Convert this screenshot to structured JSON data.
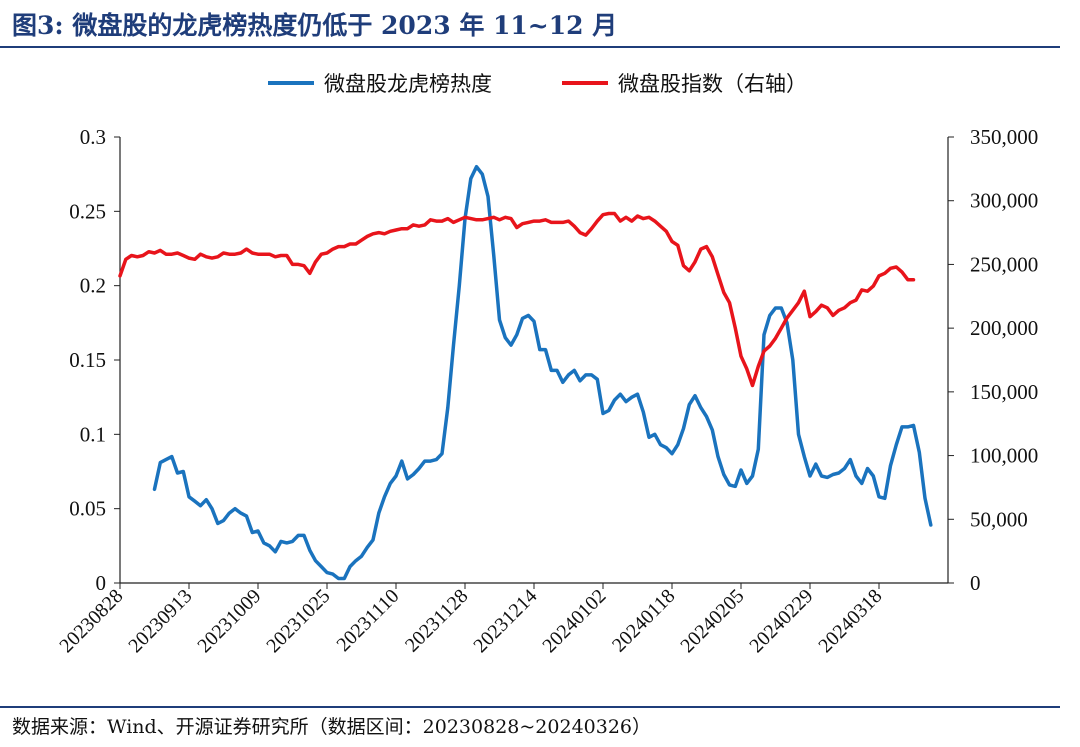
{
  "title": "图3:  微盘股的龙虎榜热度仍低于 2023 年 11~12 月",
  "source": "数据来源：Wind、开源证券研究所（数据区间：20230828~20240326）",
  "chart_data": {
    "type": "line",
    "legend_position": "top",
    "grid": false,
    "x_tick_labels": [
      "20230828",
      "20230913",
      "20231009",
      "20231025",
      "20231110",
      "20231128",
      "20231214",
      "20240102",
      "20240118",
      "20240205",
      "20240229",
      "20240318"
    ],
    "left_axis": {
      "ylim": [
        0,
        0.3
      ],
      "ticks": [
        "0",
        "0.05",
        "0.1",
        "0.15",
        "0.2",
        "0.25",
        "0.3"
      ]
    },
    "right_axis": {
      "ylim": [
        0,
        350000
      ],
      "ticks": [
        "0",
        "50,000",
        "100,000",
        "150,000",
        "200,000",
        "250,000",
        "300,000",
        "350,000"
      ]
    },
    "series": [
      {
        "name": "微盘股龙虎榜热度",
        "axis": "left",
        "color": "#1a73be",
        "start_index": 6,
        "values": [
          0.063,
          0.081,
          0.083,
          0.085,
          0.074,
          0.075,
          0.058,
          0.055,
          0.052,
          0.056,
          0.05,
          0.04,
          0.042,
          0.047,
          0.05,
          0.047,
          0.045,
          0.034,
          0.035,
          0.027,
          0.025,
          0.021,
          0.028,
          0.027,
          0.028,
          0.032,
          0.032,
          0.022,
          0.015,
          0.011,
          0.007,
          0.006,
          0.003,
          0.003,
          0.011,
          0.015,
          0.018,
          0.024,
          0.029,
          0.047,
          0.058,
          0.067,
          0.072,
          0.082,
          0.07,
          0.073,
          0.077,
          0.082,
          0.082,
          0.083,
          0.087,
          0.118,
          0.16,
          0.2,
          0.245,
          0.272,
          0.28,
          0.275,
          0.26,
          0.22,
          0.177,
          0.165,
          0.16,
          0.167,
          0.178,
          0.18,
          0.176,
          0.157,
          0.157,
          0.143,
          0.143,
          0.135,
          0.14,
          0.143,
          0.136,
          0.14,
          0.14,
          0.137,
          0.114,
          0.116,
          0.123,
          0.127,
          0.122,
          0.125,
          0.127,
          0.115,
          0.098,
          0.1,
          0.093,
          0.091,
          0.087,
          0.093,
          0.104,
          0.12,
          0.126,
          0.118,
          0.112,
          0.103,
          0.085,
          0.073,
          0.066,
          0.065,
          0.076,
          0.067,
          0.072,
          0.09,
          0.167,
          0.18,
          0.185,
          0.185,
          0.175,
          0.15,
          0.1,
          0.085,
          0.072,
          0.08,
          0.072,
          0.071,
          0.073,
          0.074,
          0.077,
          0.083,
          0.072,
          0.067,
          0.077,
          0.072,
          0.058,
          0.057,
          0.079,
          0.093,
          0.105,
          0.105,
          0.106,
          0.088,
          0.057,
          0.039
        ]
      },
      {
        "name": "微盘股指数（右轴）",
        "axis": "right",
        "color": "#e8141b",
        "start_index": 0,
        "values": [
          241000,
          254000,
          257000,
          256000,
          257000,
          260000,
          259000,
          261000,
          258000,
          258000,
          259000,
          257000,
          255000,
          254000,
          258000,
          256000,
          255000,
          256000,
          259000,
          258000,
          258000,
          259000,
          262000,
          259000,
          258000,
          258000,
          258000,
          256000,
          257000,
          257000,
          250000,
          250000,
          249000,
          243000,
          252000,
          258000,
          259000,
          262000,
          264000,
          264000,
          266000,
          266000,
          269000,
          272000,
          274000,
          275000,
          274000,
          276000,
          277000,
          278000,
          278000,
          281000,
          280000,
          281000,
          285000,
          284000,
          284000,
          286000,
          283000,
          285000,
          287000,
          286000,
          285000,
          285000,
          286000,
          287000,
          285000,
          287000,
          286000,
          279000,
          282000,
          283000,
          284000,
          284000,
          285000,
          283000,
          283000,
          283000,
          284000,
          280000,
          275000,
          273000,
          278000,
          284000,
          289000,
          290000,
          290000,
          284000,
          287000,
          284000,
          288000,
          286000,
          287000,
          284000,
          280000,
          276000,
          268000,
          265000,
          249000,
          245000,
          252000,
          262000,
          264000,
          256000,
          242000,
          228000,
          220000,
          200000,
          178000,
          168000,
          155000,
          170000,
          182000,
          186000,
          192000,
          200000,
          208000,
          214000,
          220000,
          229000,
          209000,
          213000,
          218000,
          216000,
          210000,
          214000,
          216000,
          220000,
          222000,
          230000,
          229000,
          233000,
          241000,
          243000,
          247000,
          248000,
          244000,
          238000,
          238000
        ]
      }
    ]
  }
}
